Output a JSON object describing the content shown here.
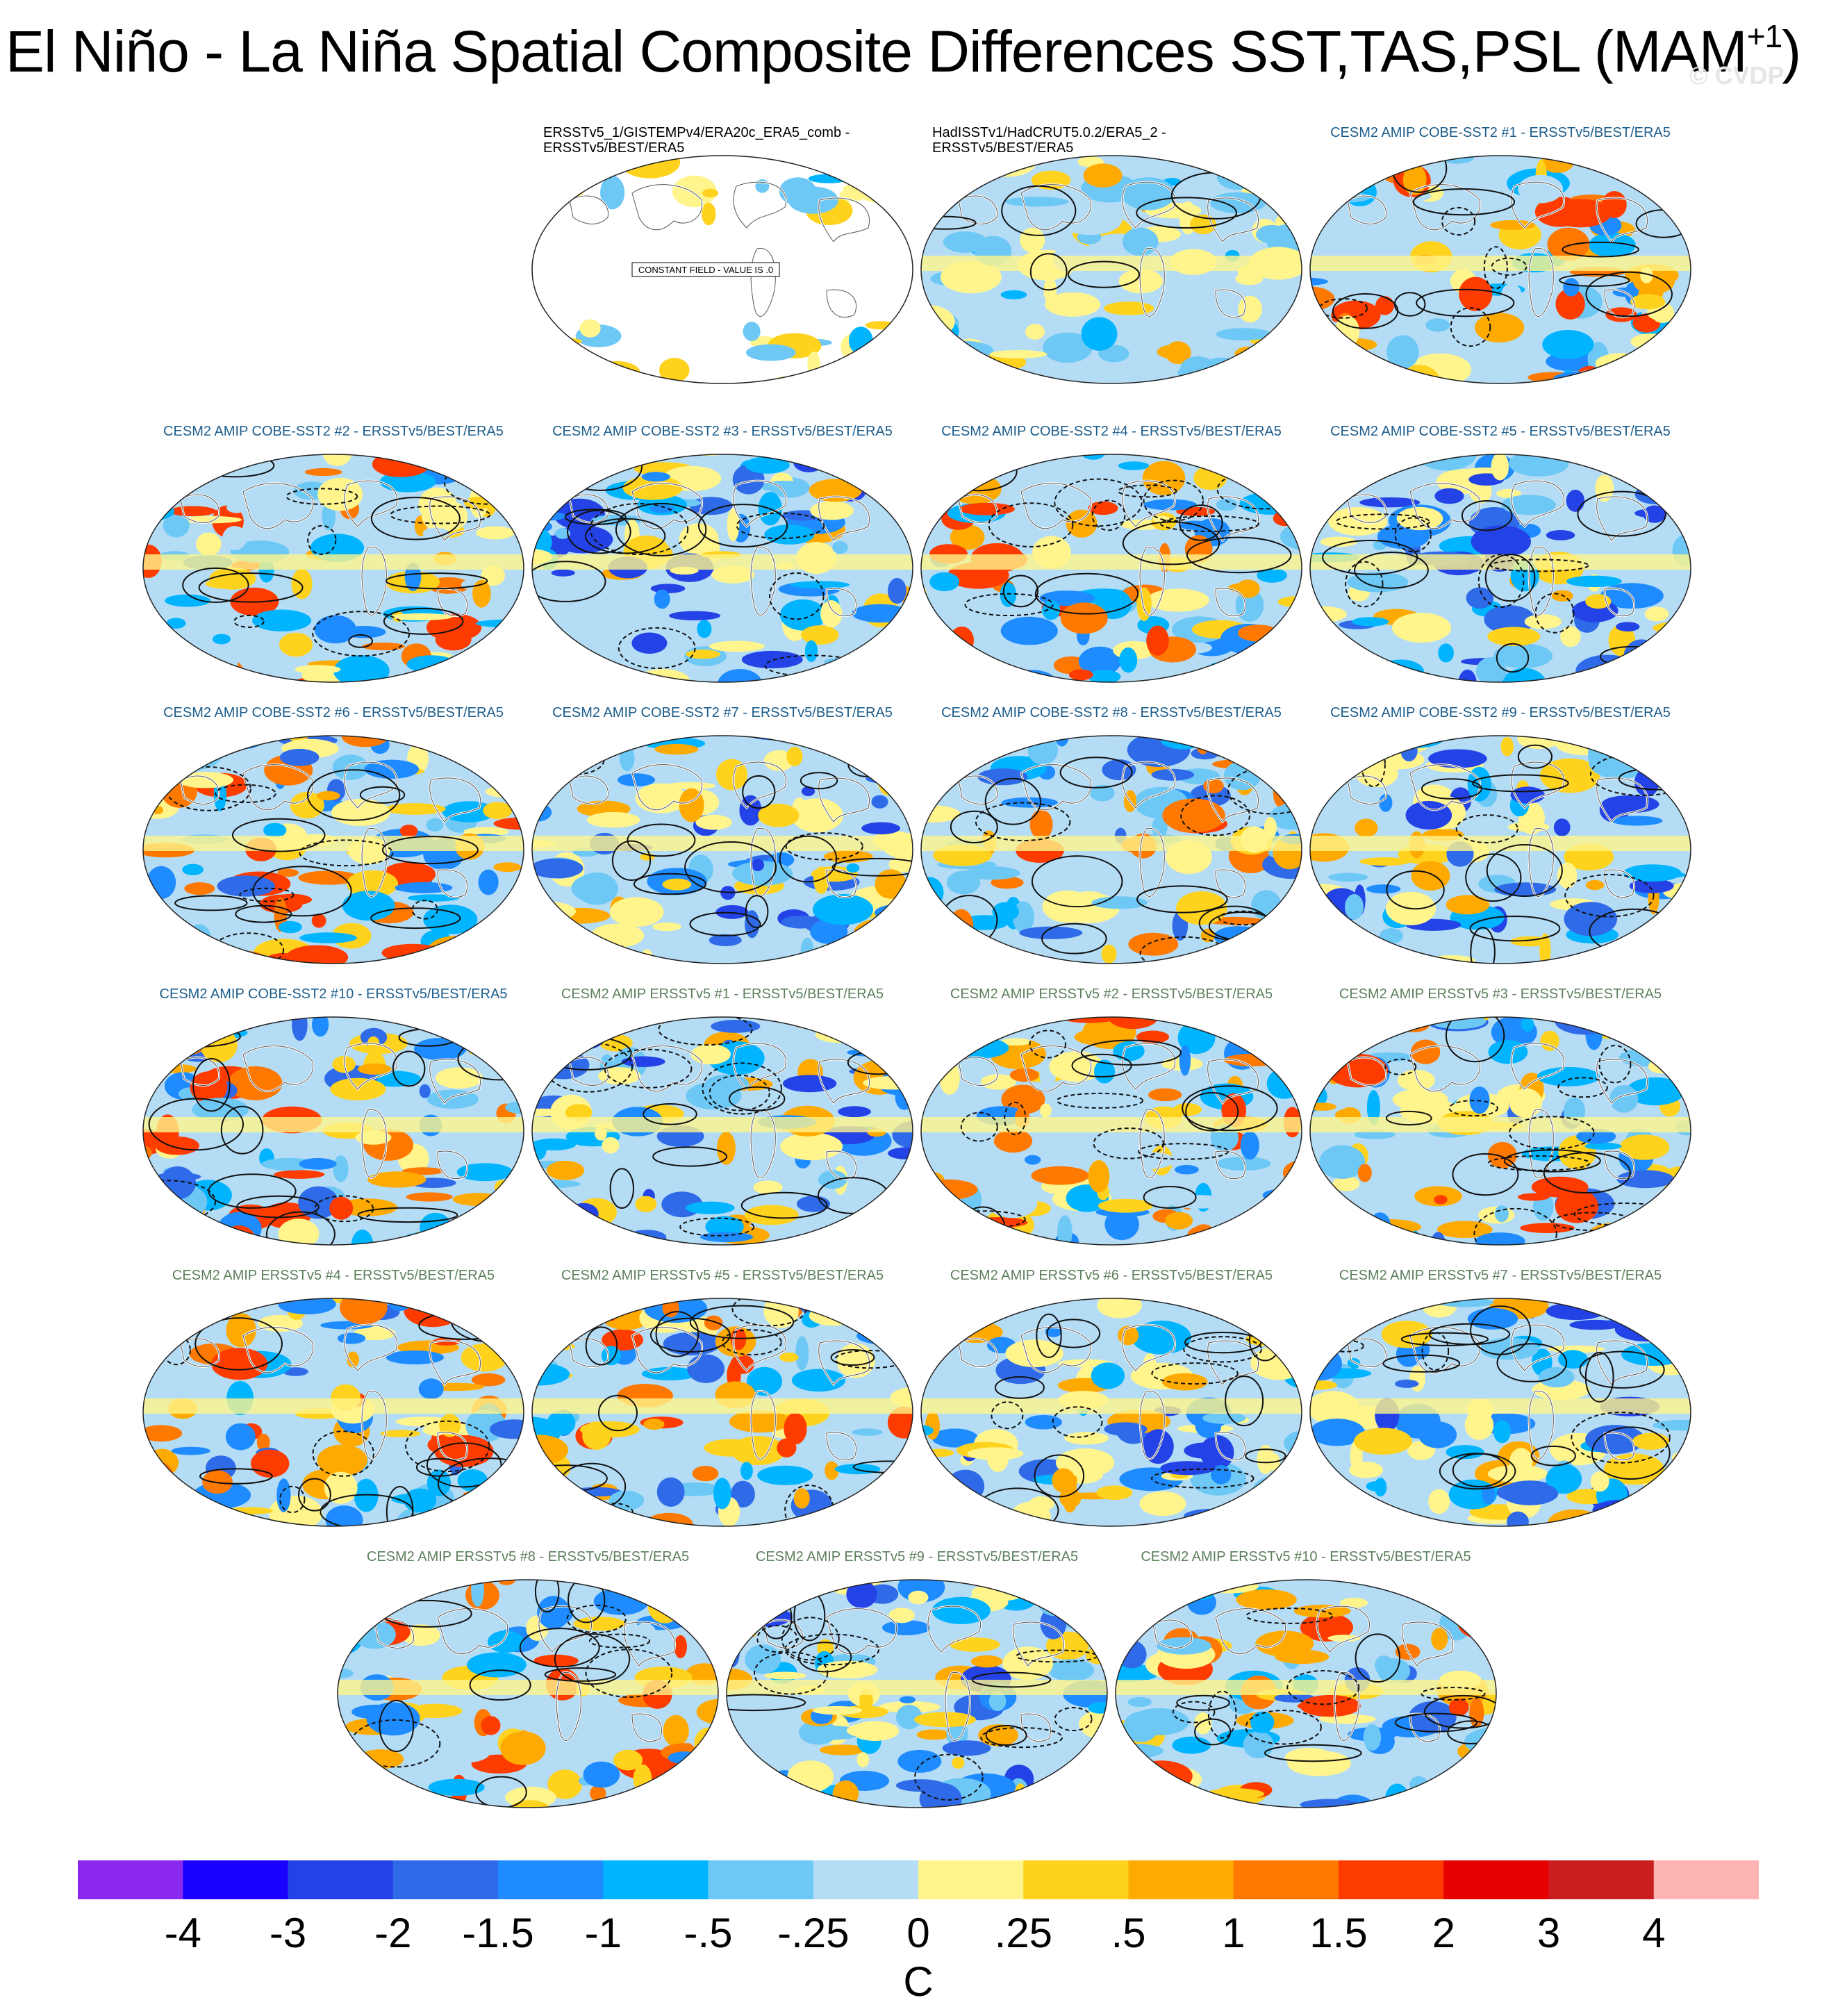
{
  "title": {
    "main": "El Niño - La Niña Spatial Composite Differences SST,TAS,PSL (MAM",
    "sup": "+1",
    "close": ")"
  },
  "watermark": "© CVDP",
  "constant_field_note": "CONSTANT FIELD - VALUE IS .0",
  "panels": [
    {
      "line1": "ERSSTv5_1/GISTEMPv4/ERA20c_ERA5_comb -",
      "line2": "ERSSTv5/BEST/ERA5",
      "group": "obs",
      "variant": "sparse"
    },
    {
      "line1": "HadISSTv1/HadCRUT5.0.2/ERA5_2 -",
      "line2": "ERSSTv5/BEST/ERA5",
      "group": "obs",
      "variant": "light"
    },
    {
      "line1": "CESM2 AMIP COBE-SST2 #1 - ERSSTv5/BEST/ERA5",
      "line2": "",
      "group": "cobe",
      "variant": "warm"
    },
    {
      "line1": "CESM2 AMIP COBE-SST2 #2 - ERSSTv5/BEST/ERA5",
      "line2": "",
      "group": "cobe",
      "variant": "warm"
    },
    {
      "line1": "CESM2 AMIP COBE-SST2 #3 - ERSSTv5/BEST/ERA5",
      "line2": "",
      "group": "cobe",
      "variant": "cool"
    },
    {
      "line1": "CESM2 AMIP COBE-SST2 #4 - ERSSTv5/BEST/ERA5",
      "line2": "",
      "group": "cobe",
      "variant": "warm"
    },
    {
      "line1": "CESM2 AMIP COBE-SST2 #5 - ERSSTv5/BEST/ERA5",
      "line2": "",
      "group": "cobe",
      "variant": "cool"
    },
    {
      "line1": "CESM2 AMIP COBE-SST2 #6 - ERSSTv5/BEST/ERA5",
      "line2": "",
      "group": "cobe",
      "variant": "mixed"
    },
    {
      "line1": "CESM2 AMIP COBE-SST2 #7 - ERSSTv5/BEST/ERA5",
      "line2": "",
      "group": "cobe",
      "variant": "cool"
    },
    {
      "line1": "CESM2 AMIP COBE-SST2 #8 - ERSSTv5/BEST/ERA5",
      "line2": "",
      "group": "cobe",
      "variant": "mixed"
    },
    {
      "line1": "CESM2 AMIP COBE-SST2 #9 - ERSSTv5/BEST/ERA5",
      "line2": "",
      "group": "cobe",
      "variant": "cool"
    },
    {
      "line1": "CESM2 AMIP COBE-SST2 #10 - ERSSTv5/BEST/ERA5",
      "line2": "",
      "group": "cobe",
      "variant": "mixed"
    },
    {
      "line1": "CESM2 AMIP ERSSTv5 #1 - ERSSTv5/BEST/ERA5",
      "line2": "",
      "group": "ersst",
      "variant": "cool"
    },
    {
      "line1": "CESM2 AMIP ERSSTv5 #2 - ERSSTv5/BEST/ERA5",
      "line2": "",
      "group": "ersst",
      "variant": "warm"
    },
    {
      "line1": "CESM2 AMIP ERSSTv5 #3 - ERSSTv5/BEST/ERA5",
      "line2": "",
      "group": "ersst",
      "variant": "mixed"
    },
    {
      "line1": "CESM2 AMIP ERSSTv5 #4 - ERSSTv5/BEST/ERA5",
      "line2": "",
      "group": "ersst",
      "variant": "mixed"
    },
    {
      "line1": "CESM2 AMIP ERSSTv5 #5 - ERSSTv5/BEST/ERA5",
      "line2": "",
      "group": "ersst",
      "variant": "mixed"
    },
    {
      "line1": "CESM2 AMIP ERSSTv5 #6 - ERSSTv5/BEST/ERA5",
      "line2": "",
      "group": "ersst",
      "variant": "cool"
    },
    {
      "line1": "CESM2 AMIP ERSSTv5 #7 - ERSSTv5/BEST/ERA5",
      "line2": "",
      "group": "ersst",
      "variant": "cool"
    },
    {
      "line1": "CESM2 AMIP ERSSTv5 #8 - ERSSTv5/BEST/ERA5",
      "line2": "",
      "group": "ersst",
      "variant": "warm"
    },
    {
      "line1": "CESM2 AMIP ERSSTv5 #9 - ERSSTv5/BEST/ERA5",
      "line2": "",
      "group": "ersst",
      "variant": "cool"
    },
    {
      "line1": "CESM2 AMIP ERSSTv5 #10 - ERSSTv5/BEST/ERA5",
      "line2": "",
      "group": "ersst",
      "variant": "mixed"
    }
  ],
  "colorbar": {
    "colors": [
      "#8a28f0",
      "#1a00ff",
      "#2443e6",
      "#2f6be8",
      "#1e8cff",
      "#00b4ff",
      "#6ec8f5",
      "#b4dcf5",
      "#fff58c",
      "#ffd21e",
      "#ffaa00",
      "#ff7800",
      "#ff3c00",
      "#e60000",
      "#c81e1e",
      "#ffb4b4"
    ],
    "labels": [
      "-4",
      "-3",
      "-2",
      "-1.5",
      "-1",
      "-.5",
      "-.25",
      "0",
      ".25",
      ".5",
      "1",
      "1.5",
      "2",
      "3",
      "4"
    ],
    "unit": "C"
  }
}
